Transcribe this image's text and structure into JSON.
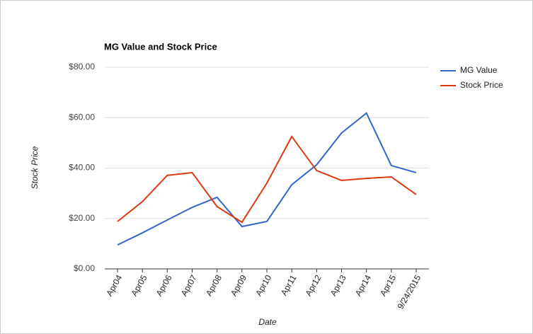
{
  "chart_data": {
    "type": "line",
    "title": "MG Value and Stock Price",
    "x_label": "Date",
    "y_label": "Stock Price",
    "categories": [
      "Apr04",
      "Apr05",
      "Apr06",
      "Apr07",
      "Apr08",
      "Apr09",
      "Apr10",
      "Apr11",
      "Apr12",
      "Apr13",
      "Apr14",
      "Apr15",
      "9/24/2015"
    ],
    "series": [
      {
        "name": "MG Value",
        "color": "#3366cc",
        "values": [
          9.5,
          14.3,
          19.4,
          24.4,
          28.4,
          16.8,
          18.8,
          33.4,
          41.3,
          53.9,
          61.8,
          41.0,
          38.2
        ]
      },
      {
        "name": "Stock Price",
        "color": "#dc3912",
        "values": [
          18.8,
          26.7,
          37.1,
          38.2,
          24.7,
          18.5,
          34.0,
          52.5,
          39.0,
          35.1,
          35.9,
          36.5,
          29.5
        ]
      }
    ],
    "ylim": [
      0,
      80
    ],
    "yticks": [
      {
        "value": 0,
        "label": "$0.00"
      },
      {
        "value": 20,
        "label": "$20.00"
      },
      {
        "value": 40,
        "label": "$40.00"
      },
      {
        "value": 60,
        "label": "$60.00"
      },
      {
        "value": 80,
        "label": "$80.00"
      }
    ],
    "grid": true,
    "legend": "right"
  }
}
